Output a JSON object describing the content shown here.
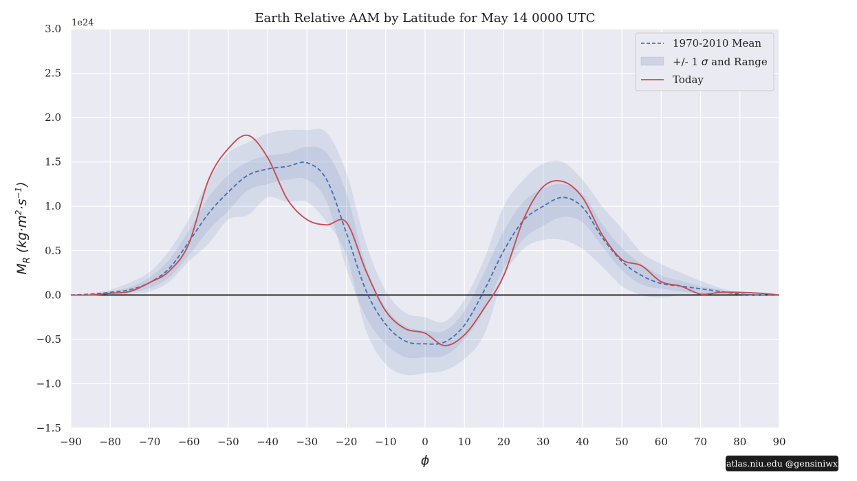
{
  "chart_data": {
    "type": "line",
    "title": "Earth Relative AAM by Latitude for May 14 0000 UTC",
    "xlabel": "ϕ",
    "ylabel": "M_R (kg·m²·s⁻¹)",
    "y_offset_label": "1e24",
    "xlim": [
      -90,
      90
    ],
    "ylim": [
      -1.5,
      3.0
    ],
    "x_ticks": [
      -90,
      -80,
      -70,
      -60,
      -50,
      -40,
      -30,
      -20,
      -10,
      0,
      10,
      20,
      30,
      40,
      50,
      60,
      70,
      80,
      90
    ],
    "x_tick_labels": [
      "−90",
      "−80",
      "−70",
      "−60",
      "−50",
      "−40",
      "−30",
      "−20",
      "−10",
      "0",
      "10",
      "20",
      "30",
      "40",
      "50",
      "60",
      "70",
      "80",
      "90"
    ],
    "y_ticks": [
      -1.5,
      -1.0,
      -0.5,
      0.0,
      0.5,
      1.0,
      1.5,
      2.0,
      2.5,
      3.0
    ],
    "y_tick_labels": [
      "−1.5",
      "−1.0",
      "−0.5",
      "0.0",
      "0.5",
      "1.0",
      "1.5",
      "2.0",
      "2.5",
      "3.0"
    ],
    "grid": true,
    "legend_position": "top-right",
    "legend": [
      {
        "label": "1970-2010 Mean",
        "style": "dashed-line"
      },
      {
        "label_parts": [
          "+/- 1 ",
          "σ",
          " and Range"
        ],
        "style": "shaded-band"
      },
      {
        "label": "Today",
        "style": "solid-line"
      }
    ],
    "colors": {
      "mean": "#4c72b0",
      "today": "#c44e52",
      "band": "#4c72b0",
      "background": "#eaeaf2",
      "grid": "#ffffff",
      "zero_line": "#000000"
    },
    "x": [
      -90,
      -85,
      -80,
      -75,
      -70,
      -65,
      -60,
      -55,
      -50,
      -45,
      -40,
      -35,
      -30,
      -25,
      -20,
      -15,
      -10,
      -5,
      0,
      5,
      10,
      15,
      20,
      25,
      30,
      35,
      40,
      45,
      50,
      55,
      60,
      65,
      70,
      75,
      80,
      85,
      90
    ],
    "series": [
      {
        "name": "1970-2010 Mean",
        "style": "dashed",
        "values": [
          0.0,
          0.01,
          0.03,
          0.06,
          0.14,
          0.3,
          0.6,
          0.92,
          1.16,
          1.35,
          1.42,
          1.45,
          1.49,
          1.3,
          0.7,
          0.05,
          -0.33,
          -0.52,
          -0.55,
          -0.53,
          -0.34,
          0.05,
          0.5,
          0.84,
          1.0,
          1.1,
          0.99,
          0.65,
          0.38,
          0.22,
          0.13,
          0.1,
          0.07,
          0.04,
          0.01,
          0.0,
          0.0
        ]
      },
      {
        "name": "Today",
        "style": "solid",
        "values": [
          0.0,
          0.0,
          0.02,
          0.04,
          0.14,
          0.27,
          0.58,
          1.3,
          1.65,
          1.8,
          1.55,
          1.08,
          0.85,
          0.79,
          0.82,
          0.27,
          -0.18,
          -0.38,
          -0.43,
          -0.57,
          -0.45,
          -0.15,
          0.22,
          0.85,
          1.22,
          1.28,
          1.1,
          0.68,
          0.4,
          0.33,
          0.15,
          0.1,
          0.01,
          0.03,
          0.03,
          0.02,
          0.0
        ]
      }
    ],
    "bands": [
      {
        "kind": "range",
        "upper": [
          0.0,
          0.02,
          0.06,
          0.14,
          0.26,
          0.5,
          0.86,
          1.3,
          1.6,
          1.72,
          1.82,
          1.86,
          1.86,
          1.83,
          1.38,
          0.58,
          0.05,
          -0.2,
          -0.25,
          -0.3,
          -0.05,
          0.4,
          1.0,
          1.3,
          1.48,
          1.5,
          1.3,
          1.0,
          0.75,
          0.48,
          0.35,
          0.25,
          0.16,
          0.08,
          0.03,
          0.01,
          0.0
        ],
        "lower": [
          0.0,
          0.0,
          0.0,
          0.01,
          0.04,
          0.15,
          0.38,
          0.58,
          0.85,
          0.9,
          1.1,
          1.05,
          1.05,
          0.82,
          0.45,
          -0.4,
          -0.78,
          -0.9,
          -0.88,
          -0.85,
          -0.72,
          -0.45,
          0.2,
          0.52,
          0.62,
          0.62,
          0.52,
          0.32,
          0.1,
          0.0,
          -0.03,
          0.0,
          0.0,
          0.0,
          0.0,
          0.0,
          0.0
        ]
      },
      {
        "kind": "sigma",
        "upper": [
          0.0,
          0.01,
          0.04,
          0.09,
          0.2,
          0.4,
          0.73,
          1.1,
          1.35,
          1.5,
          1.57,
          1.6,
          1.67,
          1.6,
          1.15,
          0.33,
          -0.14,
          -0.35,
          -0.4,
          -0.4,
          -0.18,
          0.25,
          0.72,
          1.05,
          1.2,
          1.25,
          1.14,
          0.8,
          0.53,
          0.35,
          0.22,
          0.16,
          0.1,
          0.06,
          0.02,
          0.0,
          0.0
        ],
        "lower": [
          0.0,
          0.0,
          0.01,
          0.03,
          0.08,
          0.2,
          0.45,
          0.73,
          0.95,
          1.18,
          1.25,
          1.3,
          1.3,
          1.05,
          0.3,
          -0.25,
          -0.55,
          -0.7,
          -0.7,
          -0.68,
          -0.5,
          -0.17,
          0.3,
          0.63,
          0.78,
          0.88,
          0.82,
          0.55,
          0.28,
          0.12,
          0.07,
          0.04,
          0.02,
          0.01,
          0.0,
          0.0,
          0.0
        ]
      }
    ]
  },
  "watermark": "atlas.niu.edu  @gensiniwx"
}
